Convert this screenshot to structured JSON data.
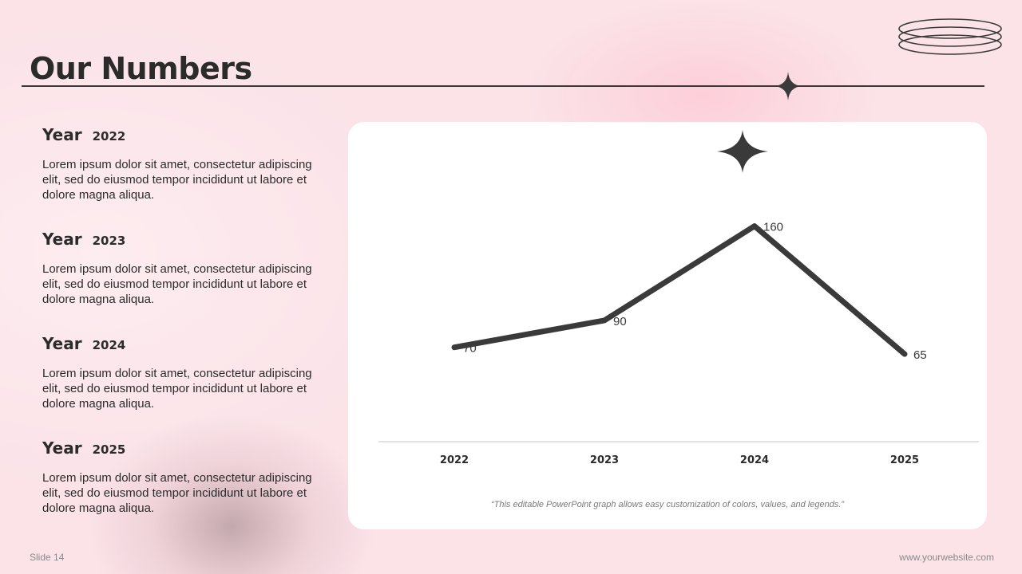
{
  "slide": {
    "title": "Our Numbers",
    "slide_label": "Slide 14",
    "website": "www.yourwebsite.com",
    "colors": {
      "background": "#fbe3e8",
      "ink": "#3a3a3a",
      "card": "#ffffff"
    }
  },
  "years": [
    {
      "word": "Year",
      "year": "2022",
      "text": "Lorem ipsum dolor sit amet, consectetur adipiscing elit, sed do eiusmod tempor incididunt ut labore et dolore magna aliqua."
    },
    {
      "word": "Year",
      "year": "2023",
      "text": "Lorem ipsum dolor sit amet, consectetur adipiscing elit, sed do eiusmod tempor incididunt ut labore et dolore magna aliqua."
    },
    {
      "word": "Year",
      "year": "2024",
      "text": "Lorem ipsum dolor sit amet, consectetur adipiscing elit, sed do eiusmod tempor incididunt ut labore et dolore magna aliqua."
    },
    {
      "word": "Year",
      "year": "2025",
      "text": "Lorem ipsum dolor sit amet, consectetur adipiscing elit, sed do eiusmod tempor incididunt ut labore et dolore magna aliqua."
    }
  ],
  "chart_note": "“This editable PowerPoint graph allows easy customization of colors, values, and legends.”",
  "decor": {
    "icons": [
      "four-point-star-icon",
      "rings-icon"
    ]
  },
  "chart_data": {
    "type": "line",
    "categories": [
      "2022",
      "2023",
      "2024",
      "2025"
    ],
    "series": [
      {
        "values": [
          70,
          90,
          160,
          65
        ]
      }
    ],
    "ylim": [
      0,
      230
    ],
    "grid": false,
    "legend": "none",
    "line_color": "#3a3a3a"
  }
}
